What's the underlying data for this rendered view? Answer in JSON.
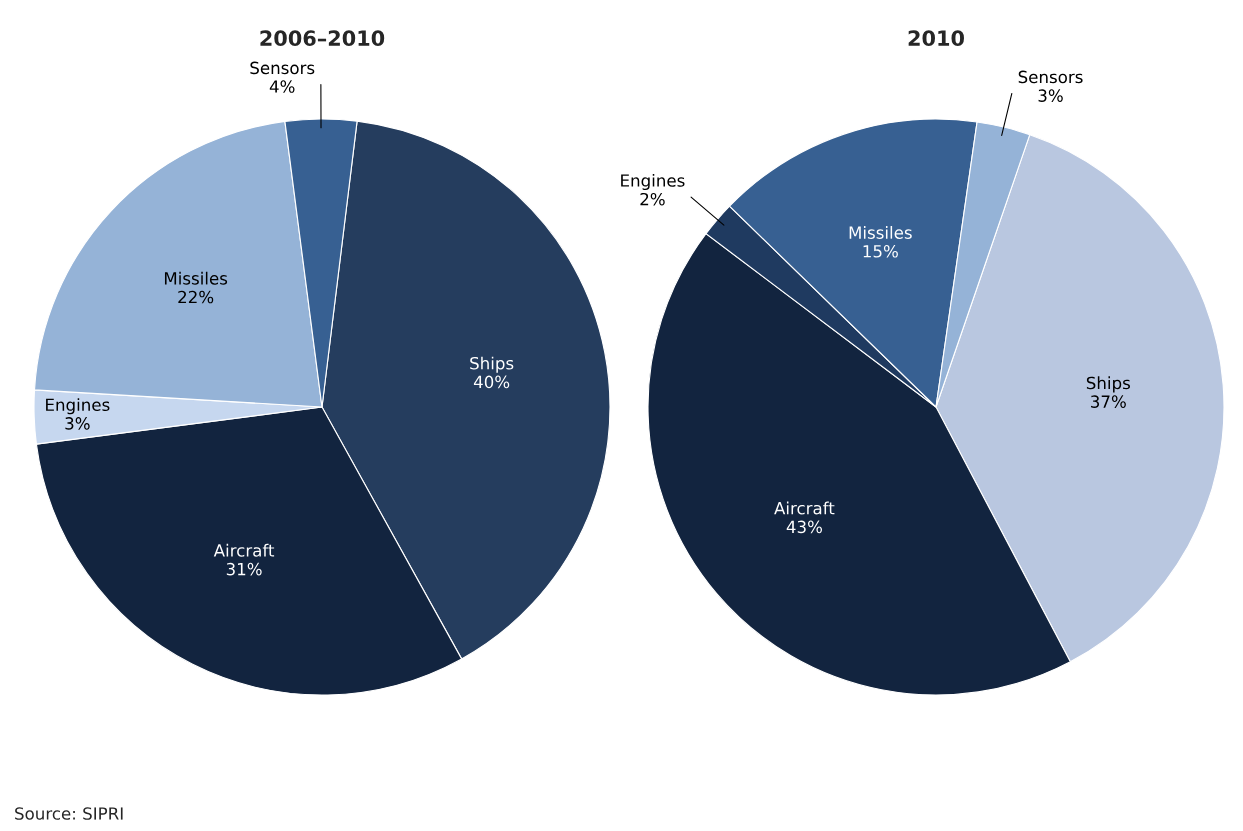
{
  "chart_data": [
    {
      "type": "pie",
      "title": "2006–2010",
      "categories": [
        "Ships",
        "Aircraft",
        "Engines",
        "Missiles",
        "Sensors"
      ],
      "values": [
        40,
        31,
        3,
        22,
        4
      ],
      "value_labels": [
        "40%",
        "31%",
        "3%",
        "22%",
        "4%"
      ],
      "colors": [
        "#253d5e",
        "#12243f",
        "#c6d7ef",
        "#95b3d7",
        "#376092"
      ],
      "annotations": [
        "Source: SIPRI"
      ]
    },
    {
      "type": "pie",
      "title": "2010",
      "categories": [
        "Ships",
        "Aircraft",
        "Engines",
        "Missiles",
        "Sensors"
      ],
      "values": [
        37,
        43,
        2,
        15,
        3
      ],
      "value_labels": [
        "37%",
        "43%",
        "2%",
        "15%",
        "3%"
      ],
      "colors": [
        "#b9c7e0",
        "#12243f",
        "#1f3a60",
        "#376092",
        "#95b3d7"
      ]
    }
  ]
}
